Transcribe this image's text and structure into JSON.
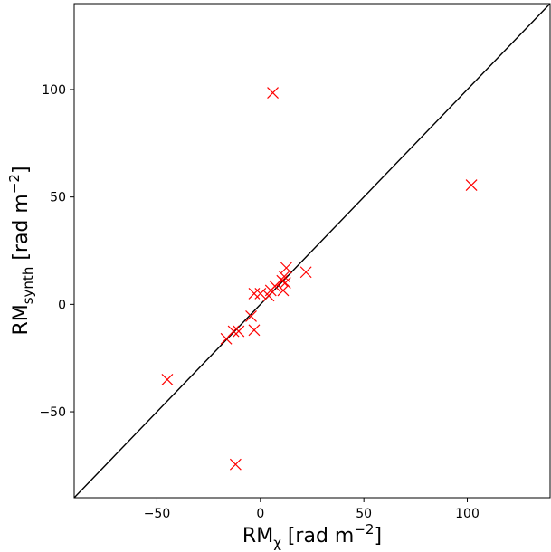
{
  "chart_data": {
    "type": "scatter",
    "xlabel": {
      "main": "RM",
      "sub": "χ",
      "units_prefix": " [rad m",
      "units_sup": "−2",
      "units_suffix": "]"
    },
    "ylabel": {
      "main": "RM",
      "sub": "synth",
      "units_prefix": " [rad m",
      "units_sup": "−2",
      "units_suffix": "]"
    },
    "xlim": [
      -90,
      140
    ],
    "ylim": [
      -90,
      140
    ],
    "xticks": [
      -50,
      0,
      50,
      100
    ],
    "xtick_labels": [
      "−50",
      "0",
      "50",
      "100"
    ],
    "yticks": [
      -50,
      0,
      50,
      100
    ],
    "ytick_labels": [
      "−50",
      "0",
      "50",
      "100"
    ],
    "grid": false,
    "reference_line": {
      "kind": "y=x",
      "color": "#000000"
    },
    "marker": "x",
    "marker_color": "#ff0000",
    "points": [
      {
        "x": 6,
        "y": 98.5
      },
      {
        "x": 102,
        "y": 55.5
      },
      {
        "x": -45,
        "y": -35
      },
      {
        "x": -12,
        "y": -74.5
      },
      {
        "x": 22,
        "y": 15
      },
      {
        "x": 12.5,
        "y": 17
      },
      {
        "x": 11.5,
        "y": 13
      },
      {
        "x": 10.5,
        "y": 11
      },
      {
        "x": 12,
        "y": 10
      },
      {
        "x": 11,
        "y": 6.5
      },
      {
        "x": 7,
        "y": 8.5
      },
      {
        "x": 5,
        "y": 6.5
      },
      {
        "x": 4,
        "y": 4
      },
      {
        "x": 0,
        "y": 5
      },
      {
        "x": -3,
        "y": 5
      },
      {
        "x": -4.5,
        "y": -5.5
      },
      {
        "x": -3,
        "y": -12
      },
      {
        "x": -10.5,
        "y": -12.5
      },
      {
        "x": -13,
        "y": -12.5
      },
      {
        "x": -16.5,
        "y": -16
      }
    ]
  }
}
